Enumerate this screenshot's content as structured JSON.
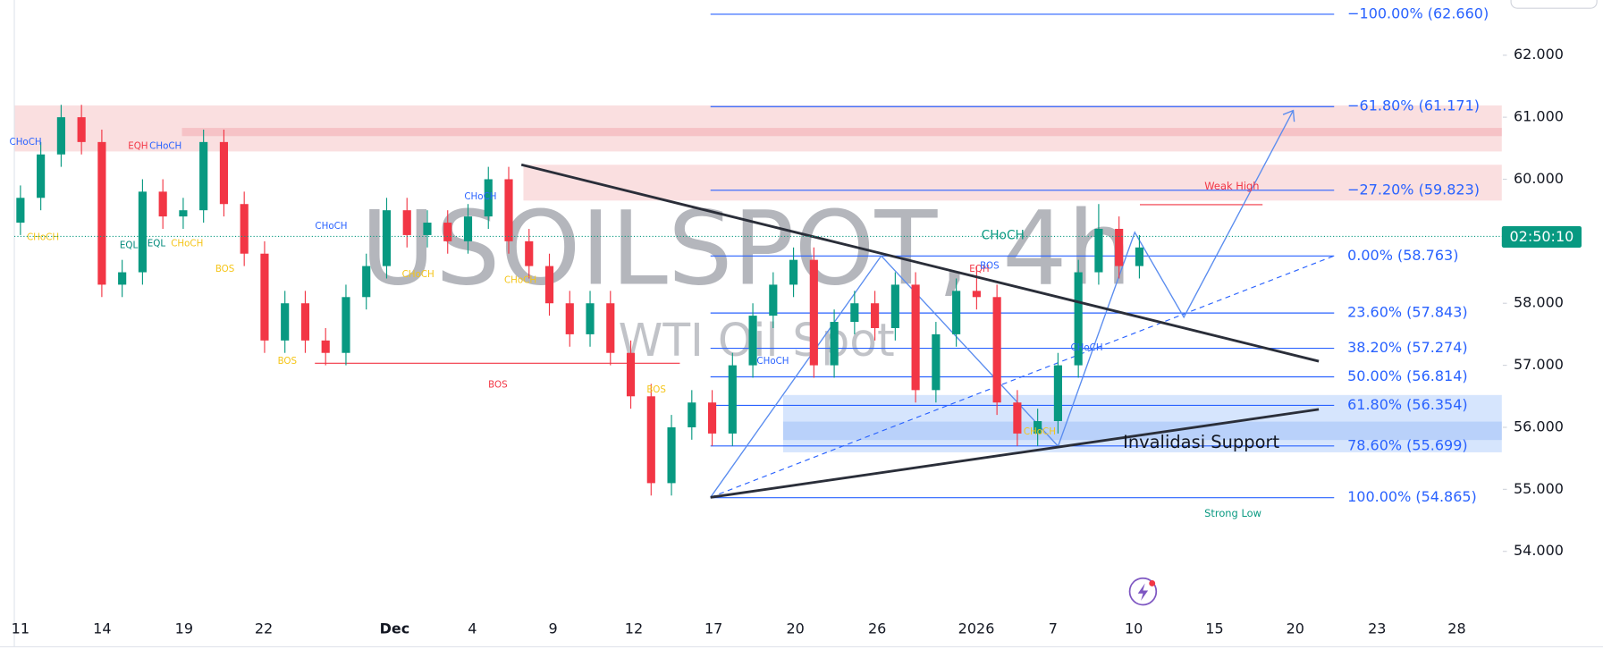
{
  "chart_data": {
    "type": "candlestick",
    "title": "USOILSPOT, 4h",
    "subtitle": "WTI Oil Spot",
    "x_labels": [
      "11",
      "14",
      "19",
      "22",
      "Dec",
      "4",
      "9",
      "12",
      "17",
      "20",
      "26",
      "2026",
      "7",
      "10",
      "15",
      "20",
      "23",
      "28"
    ],
    "open": [
      59.3,
      59.7,
      60.4,
      61.0,
      60.6,
      58.3,
      58.5,
      59.8,
      59.4,
      59.5,
      60.6,
      59.6,
      58.8,
      57.4,
      58.0,
      57.4,
      57.2,
      58.1,
      58.6,
      59.5,
      59.1,
      59.3,
      59.0,
      59.4,
      60.0,
      59.0,
      58.6,
      58.0,
      57.5,
      58.0,
      57.2,
      56.5,
      55.1,
      56.0,
      56.4,
      55.9,
      57.0,
      57.8,
      58.3,
      58.7,
      57.0,
      57.7,
      58.0,
      57.6,
      58.3,
      56.6,
      57.5,
      58.2,
      58.1,
      56.4,
      55.9,
      56.1,
      57.0,
      58.5,
      59.2,
      58.6
    ],
    "high": [
      59.9,
      60.6,
      61.2,
      61.2,
      60.8,
      58.7,
      60.0,
      60.0,
      59.7,
      60.8,
      60.8,
      59.8,
      59.0,
      58.2,
      58.2,
      57.6,
      58.3,
      58.8,
      59.7,
      59.7,
      59.5,
      59.5,
      59.6,
      60.2,
      60.2,
      59.2,
      58.8,
      58.2,
      58.2,
      58.2,
      57.4,
      56.7,
      56.2,
      56.6,
      56.6,
      57.2,
      58.0,
      58.5,
      58.9,
      58.9,
      57.9,
      58.2,
      58.2,
      58.5,
      58.5,
      57.7,
      58.4,
      58.6,
      58.3,
      56.6,
      56.3,
      57.2,
      58.7,
      59.6,
      59.4,
      59.1
    ],
    "low": [
      59.1,
      59.5,
      60.2,
      60.4,
      58.1,
      58.1,
      58.3,
      59.2,
      59.2,
      59.3,
      59.4,
      58.6,
      57.2,
      57.2,
      57.2,
      57.0,
      57.0,
      57.9,
      58.4,
      58.9,
      58.9,
      58.8,
      58.8,
      59.2,
      58.8,
      58.4,
      57.8,
      57.3,
      57.3,
      57.0,
      56.3,
      54.9,
      54.9,
      55.8,
      55.7,
      55.7,
      56.8,
      57.6,
      58.1,
      56.8,
      56.8,
      57.5,
      57.4,
      57.4,
      56.4,
      56.4,
      57.3,
      57.9,
      56.2,
      55.7,
      55.7,
      55.9,
      56.8,
      58.3,
      58.4,
      58.4
    ],
    "close": [
      59.7,
      60.4,
      61.0,
      60.6,
      58.3,
      58.5,
      59.8,
      59.4,
      59.5,
      60.6,
      59.6,
      58.8,
      57.4,
      58.0,
      57.4,
      57.2,
      58.1,
      58.6,
      59.5,
      59.1,
      59.3,
      59.0,
      59.4,
      60.0,
      59.0,
      58.6,
      58.0,
      57.5,
      58.0,
      57.2,
      56.5,
      55.1,
      56.0,
      56.4,
      55.9,
      57.0,
      57.8,
      58.3,
      58.7,
      57.0,
      57.7,
      58.0,
      57.6,
      58.3,
      56.6,
      57.5,
      58.2,
      58.1,
      56.4,
      55.9,
      56.1,
      57.0,
      58.5,
      59.2,
      58.6,
      58.9
    ],
    "up_color": "#089981",
    "down_color": "#f23645",
    "ylim": [
      52.99,
      62.89
    ],
    "yticks": [
      {
        "value": 54,
        "label": "54.000"
      },
      {
        "value": 55,
        "label": "55.000"
      },
      {
        "value": 56,
        "label": "56.000"
      },
      {
        "value": 57,
        "label": "57.000"
      },
      {
        "value": 58,
        "label": "58.000"
      },
      {
        "value": 59,
        "label": "59.000"
      },
      {
        "value": 60,
        "label": "60.000"
      },
      {
        "value": 61,
        "label": "61.000"
      },
      {
        "value": 62,
        "label": "62.000"
      }
    ],
    "fib_color": "#2962ff",
    "fib_levels": [
      {
        "value": 62.66,
        "label": "−100.00% (62.660)"
      },
      {
        "value": 61.171,
        "label": "−61.80% (61.171)"
      },
      {
        "value": 59.823,
        "label": "−27.20% (59.823)"
      },
      {
        "value": 58.763,
        "label": "0.00% (58.763)"
      },
      {
        "value": 57.843,
        "label": "23.60% (57.843)"
      },
      {
        "value": 57.274,
        "label": "38.20% (57.274)"
      },
      {
        "value": 56.814,
        "label": "50.00% (56.814)"
      },
      {
        "value": 56.354,
        "label": "61.80% (56.354)"
      },
      {
        "value": 55.699,
        "label": "78.60% (55.699)"
      },
      {
        "value": 54.865,
        "label": "100.00% (54.865)"
      }
    ],
    "annotations": [
      {
        "text": "CHoCH",
        "color": "#2962ff"
      },
      {
        "text": "EQH",
        "color": "#f23645"
      },
      {
        "text": "CHoCH",
        "color": "#2962ff"
      },
      {
        "text": "EQL",
        "color": "#00897b"
      },
      {
        "text": "EQL",
        "color": "#00897b"
      },
      {
        "text": "CHoCH",
        "color": "#f5c518"
      },
      {
        "text": "CHoCH",
        "color": "#f5c518"
      },
      {
        "text": "BOS",
        "color": "#f5c518"
      },
      {
        "text": "BOS",
        "color": "#f5c518"
      },
      {
        "text": "CHoCH",
        "color": "#2962ff"
      },
      {
        "text": "BOS",
        "color": "#f23645"
      },
      {
        "text": "CHoCH",
        "color": "#2962ff"
      },
      {
        "text": "CHoCH",
        "color": "#f5c518"
      },
      {
        "text": "CHoCH",
        "color": "#f5c518"
      },
      {
        "text": "BOS",
        "color": "#f5c518"
      },
      {
        "text": "CHoCH",
        "color": "#2962ff"
      },
      {
        "text": "CHoCH",
        "color": "#089981"
      },
      {
        "text": "EQH",
        "color": "#f23645"
      },
      {
        "text": "BOS",
        "color": "#2962ff"
      },
      {
        "text": "CHoCH",
        "color": "#2962ff"
      },
      {
        "text": "CHoCH",
        "color": "#f5c518"
      },
      {
        "text": "Weak High",
        "color": "#f23645"
      },
      {
        "text": "Strong Low",
        "color": "#089981"
      },
      {
        "text": "Invalidasi Support",
        "color": "#131722"
      }
    ],
    "countdown": "02:50:10"
  }
}
